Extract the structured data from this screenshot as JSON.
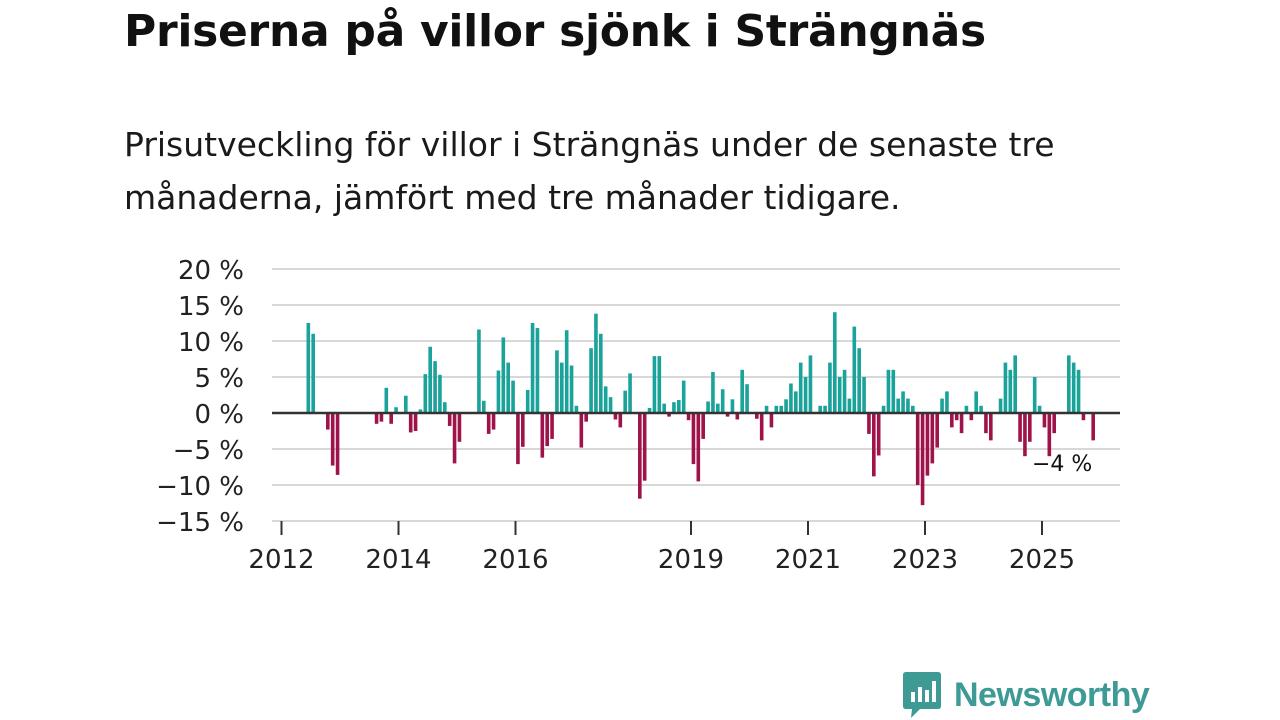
{
  "title": "Priserna på villor sjönk i Strängnäs",
  "subtitle": "Prisutveckling för villor i Strängnäs under de senaste tre månaderna, jämfört med tre månader tidigare.",
  "colors": {
    "positive": "#1aa39a",
    "negative": "#a0134a",
    "grid": "#d8d8d8",
    "axis": "#333333",
    "brand": "#3d9a95"
  },
  "brand": {
    "name": "Newsworthy"
  },
  "chart_data": {
    "type": "bar",
    "title": "Priserna på villor sjönk i Strängnäs",
    "ylabel": "",
    "xlabel": "",
    "ylim": [
      -15,
      20
    ],
    "y_ticks": [
      20,
      15,
      10,
      5,
      0,
      -5,
      -10,
      -15
    ],
    "y_tick_labels": [
      "20 %",
      "15 %",
      "10 %",
      "5 %",
      "0 %",
      "−5 %",
      "−10 %",
      "−15 %"
    ],
    "x_start": 2012.0,
    "x_end": 2025.6667,
    "x_ticks": [
      2012,
      2014,
      2016,
      2019,
      2021,
      2023,
      2025
    ],
    "x_tick_labels": [
      "2012",
      "2014",
      "2016",
      "2019",
      "2021",
      "2023",
      "2025"
    ],
    "grid": true,
    "annotation": {
      "text": "−4 %",
      "month_index": 160
    },
    "start_month": "2012-01",
    "values": [
      0,
      0,
      0,
      0,
      0,
      12.5,
      11,
      0,
      0,
      -2.3,
      -7.3,
      -8.6,
      0,
      0,
      0,
      0,
      0,
      0,
      0,
      -1.5,
      -1.2,
      3.5,
      -1.5,
      0.8,
      0,
      2.4,
      -2.7,
      -2.5,
      0.5,
      5.4,
      9.2,
      7.2,
      5.3,
      1.5,
      -1.8,
      -7,
      -4,
      0,
      0,
      0,
      11.6,
      1.7,
      -2.9,
      -2.3,
      5.9,
      10.5,
      7,
      4.5,
      -7.1,
      -4.7,
      3.2,
      12.5,
      11.8,
      -6.2,
      -4.6,
      -3.6,
      8.7,
      7,
      11.5,
      6.6,
      1,
      -4.8,
      -1.2,
      9,
      13.8,
      11,
      3.7,
      2.2,
      -0.9,
      -2,
      3.1,
      5.5,
      0,
      -11.9,
      -9.4,
      0.7,
      7.9,
      7.9,
      1.3,
      -0.5,
      1.5,
      1.8,
      4.5,
      -1,
      -7.1,
      -9.5,
      -3.6,
      1.6,
      5.7,
      1.3,
      3.3,
      -0.5,
      1.9,
      -0.9,
      6,
      4,
      0,
      -0.8,
      -3.8,
      1,
      -2,
      1,
      1,
      1.9,
      4.1,
      3,
      7,
      5,
      8,
      0,
      1,
      1,
      7,
      14,
      5,
      6,
      2,
      12,
      9,
      5,
      -2.9,
      -8.8,
      -5.9,
      1,
      6,
      6,
      2,
      3,
      2,
      1,
      -10,
      -12.8,
      -8.7,
      -7,
      -4.8,
      2,
      3,
      -2,
      -1,
      -2.8,
      1,
      -1,
      3,
      1,
      -2.8,
      -3.8,
      0,
      2,
      7,
      6,
      8,
      -4,
      -6,
      -4,
      5,
      1,
      -2,
      -6,
      -2.8,
      0,
      0,
      8,
      7,
      6,
      -1,
      0,
      -3.8
    ]
  }
}
